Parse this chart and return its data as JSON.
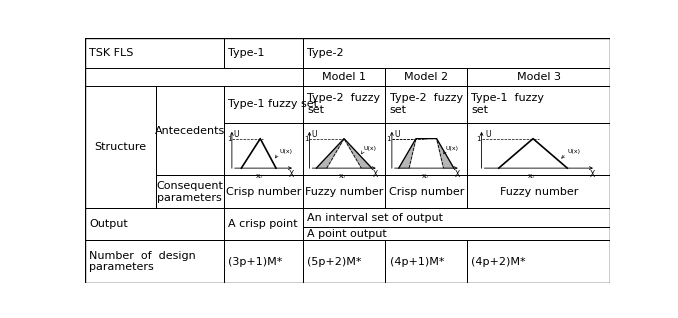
{
  "bg_color": "#ffffff",
  "border_color": "#000000",
  "font_size": 8.0,
  "fig_width": 6.78,
  "fig_height": 3.18,
  "col_boundaries": [
    0.0,
    0.135,
    0.265,
    0.415,
    0.572,
    0.728,
    1.0
  ],
  "row_boundaries": [
    1.0,
    0.878,
    0.805,
    0.655,
    0.44,
    0.305,
    0.228,
    0.175,
    0.0
  ]
}
